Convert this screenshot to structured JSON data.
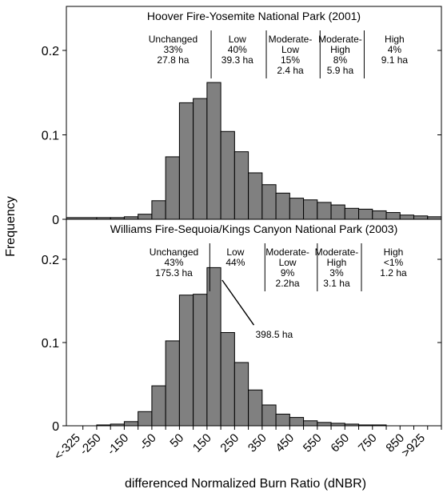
{
  "chart_data": [
    {
      "type": "bar",
      "title": "Hoover Fire-Yosemite National Park (2001)",
      "xlabel": "differenced Normalized Burn Ratio (dNBR)",
      "ylabel": "Frequency",
      "ylim": [
        0,
        0.24
      ],
      "yticks": [
        "0",
        "0.1",
        "0.2"
      ],
      "bar_color": "#808080",
      "x_range": [
        -360,
        1000
      ],
      "bin_width": 50,
      "bars": [
        {
          "x0": -360,
          "x1": -250,
          "value": 0.002
        },
        {
          "x0": -250,
          "x1": -200,
          "value": 0.002
        },
        {
          "x0": -200,
          "x1": -150,
          "value": 0.002
        },
        {
          "x0": -150,
          "x1": -100,
          "value": 0.003
        },
        {
          "x0": -100,
          "x1": -50,
          "value": 0.006
        },
        {
          "x0": -50,
          "x1": 0,
          "value": 0.022
        },
        {
          "x0": 0,
          "x1": 50,
          "value": 0.074
        },
        {
          "x0": 50,
          "x1": 100,
          "value": 0.138
        },
        {
          "x0": 100,
          "x1": 150,
          "value": 0.143
        },
        {
          "x0": 150,
          "x1": 200,
          "value": 0.162
        },
        {
          "x0": 200,
          "x1": 250,
          "value": 0.104
        },
        {
          "x0": 250,
          "x1": 300,
          "value": 0.08
        },
        {
          "x0": 300,
          "x1": 350,
          "value": 0.055
        },
        {
          "x0": 350,
          "x1": 400,
          "value": 0.041
        },
        {
          "x0": 400,
          "x1": 450,
          "value": 0.031
        },
        {
          "x0": 450,
          "x1": 500,
          "value": 0.025
        },
        {
          "x0": 500,
          "x1": 550,
          "value": 0.023
        },
        {
          "x0": 550,
          "x1": 600,
          "value": 0.02
        },
        {
          "x0": 600,
          "x1": 650,
          "value": 0.017
        },
        {
          "x0": 650,
          "x1": 700,
          "value": 0.013
        },
        {
          "x0": 700,
          "x1": 750,
          "value": 0.012
        },
        {
          "x0": 750,
          "x1": 800,
          "value": 0.01
        },
        {
          "x0": 800,
          "x1": 850,
          "value": 0.008
        },
        {
          "x0": 850,
          "x1": 900,
          "value": 0.005
        },
        {
          "x0": 900,
          "x1": 950,
          "value": 0.004
        },
        {
          "x0": 950,
          "x1": 1000,
          "value": 0.003
        }
      ],
      "dividers": [
        165,
        365,
        560,
        720
      ],
      "classes": [
        {
          "center": 27,
          "lines": [
            "Unchanged",
            "33%",
            "27.8 ha"
          ]
        },
        {
          "center": 260,
          "lines": [
            "Low",
            "40%",
            "39.3 ha"
          ]
        },
        {
          "center": 452,
          "lines": [
            "Moderate-",
            "Low",
            "15%",
            "2.4 ha"
          ]
        },
        {
          "center": 633,
          "lines": [
            "Moderate-",
            "High",
            "8%",
            "5.9 ha"
          ]
        },
        {
          "center": 830,
          "lines": [
            "High",
            "4%",
            "9.1 ha"
          ]
        }
      ]
    },
    {
      "type": "bar",
      "title": "Williams Fire-Sequoia/Kings Canyon National Park (2003)",
      "xlabel": "differenced Normalized Burn Ratio (dNBR)",
      "ylabel": "Frequency",
      "ylim": [
        0,
        0.24
      ],
      "yticks": [
        "0",
        "0.1",
        "0.2"
      ],
      "bar_color": "#808080",
      "x_range": [
        -360,
        1000
      ],
      "bin_width": 50,
      "x_ticks": [
        "<-325",
        "-250",
        "-150",
        "-50",
        "50",
        "150",
        "250",
        "350",
        "450",
        "550",
        "650",
        "750",
        "850",
        ">925"
      ],
      "bars": [
        {
          "x0": -250,
          "x1": -200,
          "value": 0.001
        },
        {
          "x0": -200,
          "x1": -150,
          "value": 0.002
        },
        {
          "x0": -150,
          "x1": -100,
          "value": 0.005
        },
        {
          "x0": -100,
          "x1": -50,
          "value": 0.017
        },
        {
          "x0": -50,
          "x1": 0,
          "value": 0.048
        },
        {
          "x0": 0,
          "x1": 50,
          "value": 0.102
        },
        {
          "x0": 50,
          "x1": 100,
          "value": 0.157
        },
        {
          "x0": 100,
          "x1": 150,
          "value": 0.158
        },
        {
          "x0": 150,
          "x1": 200,
          "value": 0.19
        },
        {
          "x0": 200,
          "x1": 250,
          "value": 0.112
        },
        {
          "x0": 250,
          "x1": 300,
          "value": 0.076
        },
        {
          "x0": 300,
          "x1": 350,
          "value": 0.043
        },
        {
          "x0": 350,
          "x1": 400,
          "value": 0.025
        },
        {
          "x0": 400,
          "x1": 450,
          "value": 0.014
        },
        {
          "x0": 450,
          "x1": 500,
          "value": 0.01
        },
        {
          "x0": 500,
          "x1": 550,
          "value": 0.006
        },
        {
          "x0": 550,
          "x1": 600,
          "value": 0.004
        },
        {
          "x0": 600,
          "x1": 650,
          "value": 0.003
        },
        {
          "x0": 650,
          "x1": 700,
          "value": 0.002
        },
        {
          "x0": 700,
          "x1": 750,
          "value": 0.001
        },
        {
          "x0": 750,
          "x1": 800,
          "value": 0.001
        }
      ],
      "dividers": [
        160,
        360,
        550,
        710
      ],
      "classes": [
        {
          "center": 30,
          "lines": [
            "Unchanged",
            "43%",
            "175.3 ha"
          ]
        },
        {
          "center": 253,
          "lines": [
            "Low",
            "44%"
          ]
        },
        {
          "center": 442,
          "lines": [
            "Moderate-",
            "Low",
            "9%",
            "2.2ha"
          ]
        },
        {
          "center": 620,
          "lines": [
            "Moderate-",
            "High",
            "3%",
            "3.1 ha"
          ]
        },
        {
          "center": 826,
          "lines": [
            "High",
            "<1%",
            "1.2 ha"
          ]
        }
      ],
      "annotation": {
        "text": "398.5 ha",
        "from": [
          205,
          0.175
        ],
        "to": [
          320,
          0.121
        ]
      }
    }
  ]
}
